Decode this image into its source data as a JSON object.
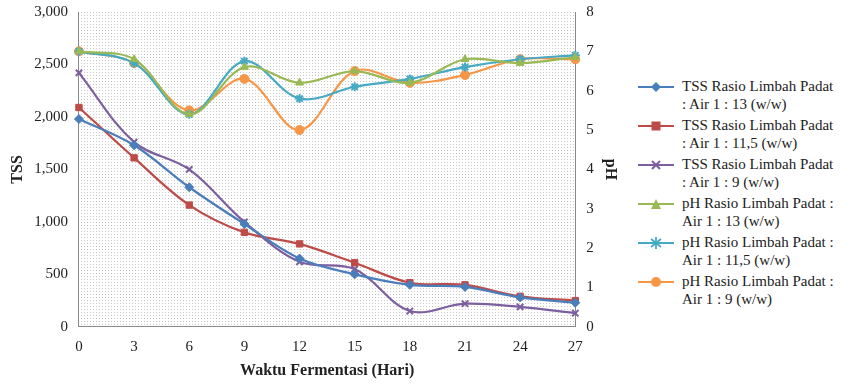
{
  "chart_data": {
    "type": "line",
    "x_label": "Waktu Fermentasi (Hari)",
    "y_label": "TSS",
    "y2_label": "pH",
    "categories": [
      0,
      3,
      6,
      9,
      12,
      15,
      18,
      21,
      24,
      27
    ],
    "ylim": [
      0,
      3000
    ],
    "yticks": [
      0,
      500,
      1000,
      1500,
      2000,
      2500,
      3000
    ],
    "y2lim": [
      0,
      8
    ],
    "y2ticks": [
      0,
      1,
      2,
      3,
      4,
      5,
      6,
      7,
      8
    ],
    "grid": false,
    "legend": "right",
    "series": [
      {
        "name": "TSS Rasio Limbah Padat : Air 1 : 13 (w/w)",
        "color": "#4a7ebb",
        "marker": "diamond",
        "values": [
          1980,
          1730,
          1330,
          980,
          650,
          500,
          400,
          380,
          280,
          230
        ]
      },
      {
        "name": "TSS Rasio Limbah Padat : Air 1 : 11,5 (w/w)",
        "color": "#be4b48",
        "marker": "square",
        "values": [
          2090,
          1610,
          1160,
          900,
          790,
          610,
          420,
          400,
          290,
          250
        ]
      },
      {
        "name": "TSS Rasio Limbah Padat : Air 1 : 9 (w/w)",
        "color": "#7d5fa0",
        "marker": "x",
        "values": [
          2420,
          1760,
          1500,
          1000,
          620,
          550,
          150,
          220,
          190,
          130
        ]
      },
      {
        "name": "pH Rasio Limbah Padat : Air 1 : 13 (w/w)",
        "color": "#98b954",
        "marker": "triangle",
        "axis": "y2",
        "values": [
          7.0,
          6.8,
          5.4,
          6.6,
          6.2,
          6.5,
          6.2,
          6.8,
          6.7,
          6.85
        ]
      },
      {
        "name": "pH Rasio Limbah Padat : Air 1 : 11,5 (w/w)",
        "color": "#46aac5",
        "marker": "star",
        "axis": "y2",
        "values": [
          7.0,
          6.7,
          5.4,
          6.75,
          5.8,
          6.1,
          6.3,
          6.6,
          6.8,
          6.9
        ]
      },
      {
        "name": "pH Rasio Limbah Padat : Air 1 : 9 (w/w)",
        "color": "#f79646",
        "marker": "circle",
        "axis": "y2",
        "values": [
          7.0,
          6.7,
          5.5,
          6.3,
          5.0,
          6.5,
          6.2,
          6.4,
          6.8,
          6.8
        ]
      }
    ]
  }
}
